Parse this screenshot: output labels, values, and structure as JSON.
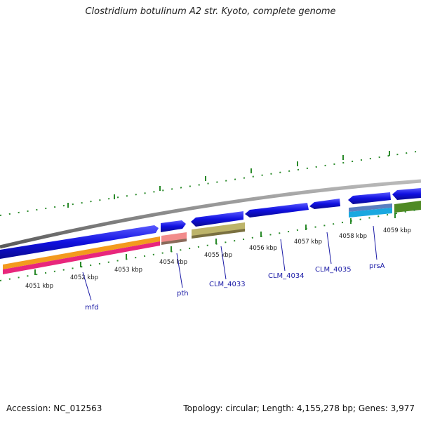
{
  "header": {
    "title": "Clostridium botulinum A2 str. Kyoto, complete genome"
  },
  "footer": {
    "accession": "Accession: NC_012563",
    "summary": "Topology: circular; Length: 4,155,278 bp; Genes: 3,977"
  },
  "colors": {
    "backbone": "#8a8a8a",
    "cds_forward": "#1010e0",
    "ticks": "#2a8a2a",
    "labels": "#1a1aa6"
  },
  "ruler": {
    "labels": [
      {
        "text": "4051 kbp"
      },
      {
        "text": "4052 kbp"
      },
      {
        "text": "4053 kbp"
      },
      {
        "text": "4054 kbp"
      },
      {
        "text": "4055 kbp"
      },
      {
        "text": "4056 kbp"
      },
      {
        "text": "4057 kbp"
      },
      {
        "text": "4058 kbp"
      },
      {
        "text": "4059 kbp"
      }
    ]
  },
  "genes": [
    {
      "name": "mfd"
    },
    {
      "name": "pth"
    },
    {
      "name": "CLM_4033"
    },
    {
      "name": "CLM_4034"
    },
    {
      "name": "CLM_4035"
    },
    {
      "name": "prsA"
    }
  ]
}
